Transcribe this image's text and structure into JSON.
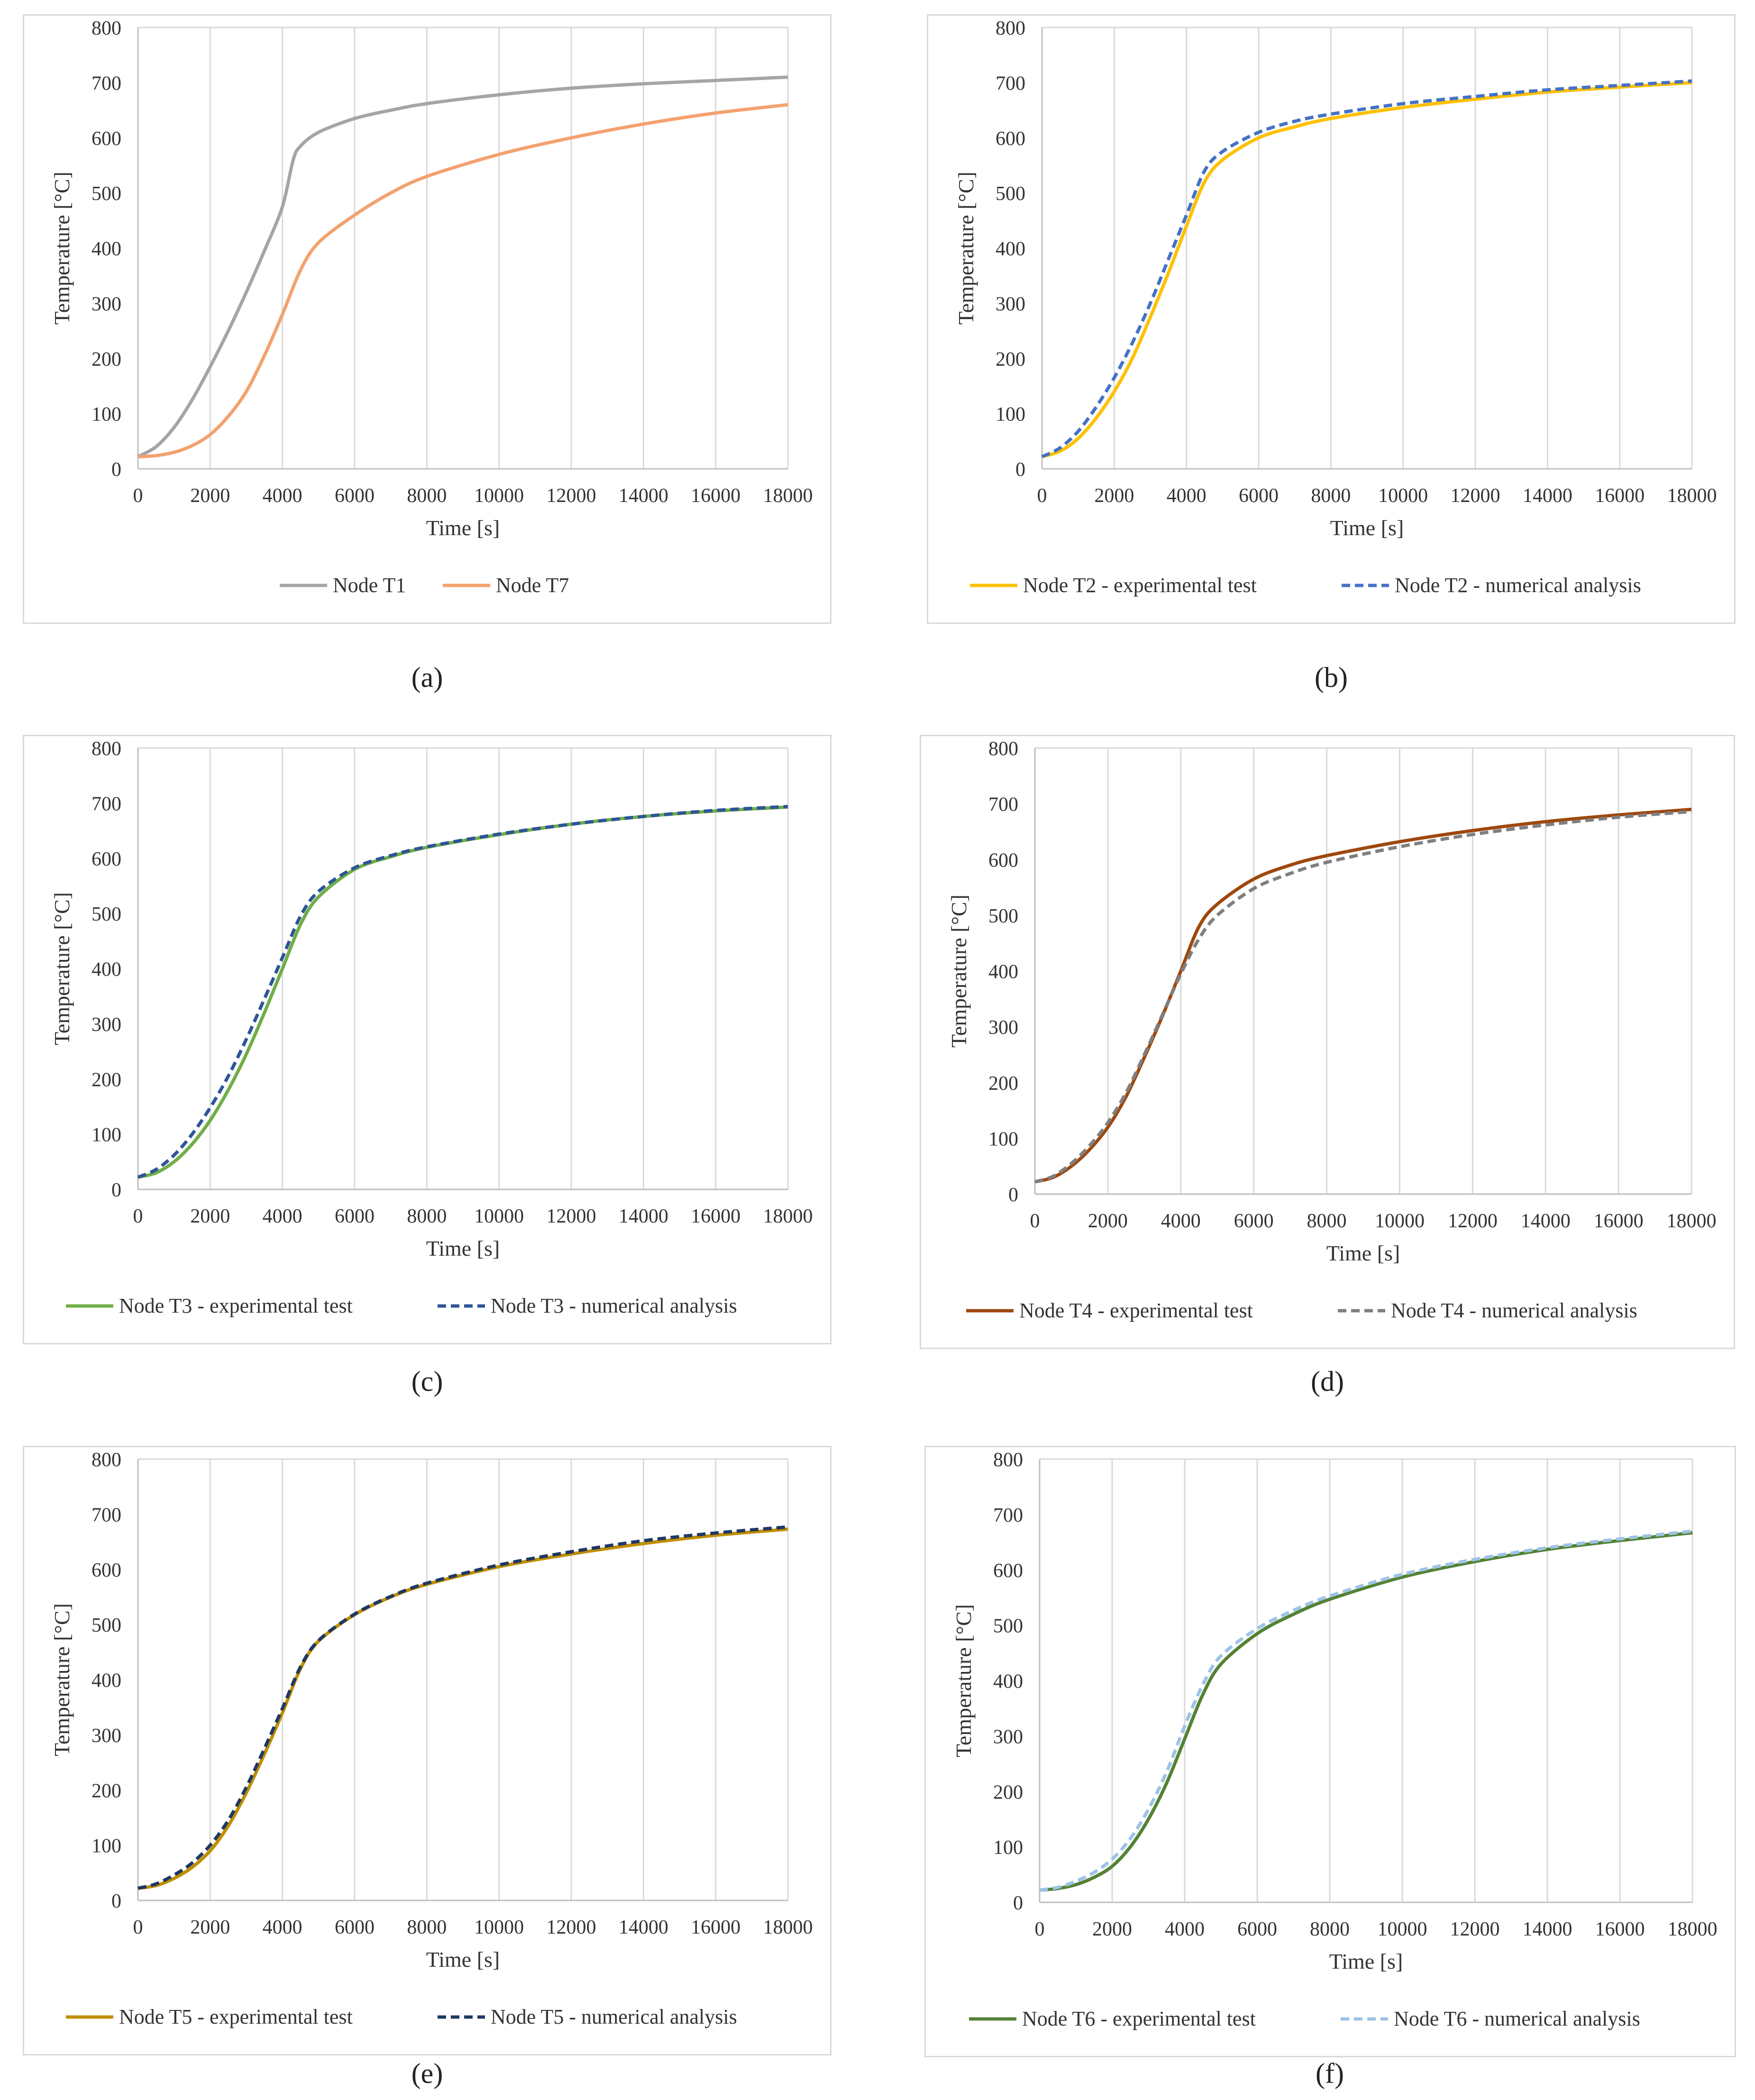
{
  "chart_data": [
    {
      "type": "line",
      "panel_label": "(a)",
      "xlabel": "Time [s]",
      "ylabel": "Temperature [°C]",
      "xlim": [
        0,
        18000
      ],
      "ylim": [
        0,
        800
      ],
      "x_ticks": [
        "0",
        "2000",
        "4000",
        "6000",
        "8000",
        "10000",
        "12000",
        "14000",
        "16000",
        "18000"
      ],
      "y_ticks": [
        "0",
        "100",
        "200",
        "300",
        "400",
        "500",
        "600",
        "700",
        "800"
      ],
      "grid": "vertical",
      "legend_position": "bottom",
      "series": [
        {
          "name": "Node T1",
          "color": "#a5a5a5",
          "dash": "solid",
          "x": [
            0,
            500,
            1000,
            1500,
            2000,
            2500,
            3000,
            3500,
            4000,
            4300,
            4500,
            5000,
            6000,
            7000,
            8000,
            10000,
            12000,
            14000,
            16000,
            18000
          ],
          "y": [
            22,
            40,
            75,
            125,
            185,
            250,
            320,
            395,
            475,
            560,
            585,
            610,
            635,
            650,
            662,
            678,
            690,
            698,
            704,
            710
          ]
        },
        {
          "name": "Node T7",
          "color": "#f4a16f",
          "dash": "solid",
          "x": [
            0,
            500,
            1000,
            1500,
            2000,
            2500,
            3000,
            3500,
            4000,
            4500,
            5000,
            6000,
            7000,
            8000,
            10000,
            12000,
            14000,
            16000,
            18000
          ],
          "y": [
            22,
            24,
            30,
            42,
            62,
            95,
            140,
            205,
            280,
            360,
            410,
            460,
            500,
            530,
            570,
            600,
            625,
            645,
            660
          ]
        }
      ]
    },
    {
      "type": "line",
      "panel_label": "(b)",
      "xlabel": "Time [s]",
      "ylabel": "Temperature [°C]",
      "xlim": [
        0,
        18000
      ],
      "ylim": [
        0,
        800
      ],
      "x_ticks": [
        "0",
        "2000",
        "4000",
        "6000",
        "8000",
        "10000",
        "12000",
        "14000",
        "16000",
        "18000"
      ],
      "y_ticks": [
        "0",
        "100",
        "200",
        "300",
        "400",
        "500",
        "600",
        "700",
        "800"
      ],
      "grid": "vertical",
      "legend_position": "bottom",
      "series": [
        {
          "name": "Node T2 - experimental test",
          "color": "#ffc000",
          "dash": "solid",
          "x": [
            0,
            500,
            1000,
            1500,
            2000,
            2500,
            3000,
            3500,
            4000,
            4500,
            5000,
            6000,
            7000,
            8000,
            10000,
            12000,
            14000,
            16000,
            18000
          ],
          "y": [
            22,
            32,
            55,
            92,
            140,
            200,
            275,
            355,
            440,
            520,
            560,
            600,
            620,
            635,
            655,
            670,
            683,
            692,
            700
          ]
        },
        {
          "name": "Node T2 - numerical analysis",
          "color": "#4472c4",
          "dash": "dashed",
          "x": [
            0,
            500,
            1000,
            1500,
            2000,
            2500,
            3000,
            3500,
            4000,
            4500,
            5000,
            6000,
            7000,
            8000,
            10000,
            12000,
            14000,
            16000,
            18000
          ],
          "y": [
            22,
            38,
            68,
            112,
            165,
            228,
            300,
            380,
            460,
            540,
            575,
            610,
            630,
            643,
            662,
            675,
            687,
            695,
            703
          ]
        }
      ]
    },
    {
      "type": "line",
      "panel_label": "(c)",
      "xlabel": "Time [s]",
      "ylabel": "Temperature [°C]",
      "xlim": [
        0,
        18000
      ],
      "ylim": [
        0,
        800
      ],
      "x_ticks": [
        "0",
        "2000",
        "4000",
        "6000",
        "8000",
        "10000",
        "12000",
        "14000",
        "16000",
        "18000"
      ],
      "y_ticks": [
        "0",
        "100",
        "200",
        "300",
        "400",
        "500",
        "600",
        "700",
        "800"
      ],
      "grid": "vertical",
      "legend_position": "bottom",
      "series": [
        {
          "name": "Node T3 - experimental test",
          "color": "#70ad47",
          "dash": "solid",
          "x": [
            0,
            500,
            1000,
            1500,
            2000,
            2500,
            3000,
            3500,
            4000,
            4500,
            5000,
            6000,
            7000,
            8000,
            10000,
            12000,
            14000,
            16000,
            18000
          ],
          "y": [
            22,
            30,
            50,
            82,
            125,
            180,
            245,
            320,
            400,
            480,
            530,
            580,
            603,
            620,
            643,
            662,
            676,
            686,
            693
          ]
        },
        {
          "name": "Node T3 - numerical analysis",
          "color": "#2e5597",
          "dash": "dashed",
          "x": [
            0,
            500,
            1000,
            1500,
            2000,
            2500,
            3000,
            3500,
            4000,
            4500,
            5000,
            6000,
            7000,
            8000,
            10000,
            12000,
            14000,
            16000,
            18000
          ],
          "y": [
            22,
            36,
            62,
            100,
            148,
            205,
            272,
            345,
            420,
            495,
            540,
            583,
            605,
            621,
            644,
            662,
            676,
            687,
            694
          ]
        }
      ]
    },
    {
      "type": "line",
      "panel_label": "(d)",
      "xlabel": "Time [s]",
      "ylabel": "Temperature [°C]",
      "xlim": [
        0,
        18000
      ],
      "ylim": [
        0,
        800
      ],
      "x_ticks": [
        "0",
        "2000",
        "4000",
        "6000",
        "8000",
        "10000",
        "12000",
        "14000",
        "16000",
        "18000"
      ],
      "y_ticks": [
        "0",
        "100",
        "200",
        "300",
        "400",
        "500",
        "600",
        "700",
        "800"
      ],
      "grid": "vertical",
      "legend_position": "bottom",
      "series": [
        {
          "name": "Node T4 - experimental test",
          "color": "#9e480e",
          "dash": "solid",
          "x": [
            0,
            500,
            1000,
            1500,
            2000,
            2500,
            3000,
            3500,
            4000,
            4500,
            5000,
            6000,
            7000,
            8000,
            10000,
            12000,
            14000,
            16000,
            18000
          ],
          "y": [
            22,
            30,
            50,
            80,
            120,
            175,
            245,
            320,
            400,
            480,
            520,
            565,
            590,
            607,
            632,
            652,
            668,
            680,
            690
          ]
        },
        {
          "name": "Node T4 - numerical analysis",
          "color": "#7f7f7f",
          "dash": "dashed",
          "x": [
            0,
            500,
            1000,
            1500,
            2000,
            2500,
            3000,
            3500,
            4000,
            4500,
            5000,
            6000,
            7000,
            8000,
            10000,
            12000,
            14000,
            16000,
            18000
          ],
          "y": [
            22,
            32,
            55,
            87,
            128,
            182,
            250,
            322,
            395,
            458,
            500,
            548,
            575,
            595,
            623,
            645,
            662,
            676,
            686
          ]
        }
      ]
    },
    {
      "type": "line",
      "panel_label": "(e)",
      "xlabel": "Time [s]",
      "ylabel": "Temperature [°C]",
      "xlim": [
        0,
        18000
      ],
      "ylim": [
        0,
        800
      ],
      "x_ticks": [
        "0",
        "2000",
        "4000",
        "6000",
        "8000",
        "10000",
        "12000",
        "14000",
        "16000",
        "18000"
      ],
      "y_ticks": [
        "0",
        "100",
        "200",
        "300",
        "400",
        "500",
        "600",
        "700",
        "800"
      ],
      "grid": "vertical",
      "legend_position": "bottom",
      "series": [
        {
          "name": "Node T5 - experimental test",
          "color": "#bf8f00",
          "dash": "solid",
          "x": [
            0,
            500,
            1000,
            1500,
            2000,
            2500,
            3000,
            3500,
            4000,
            4500,
            5000,
            6000,
            7000,
            8000,
            10000,
            12000,
            14000,
            16000,
            18000
          ],
          "y": [
            22,
            27,
            40,
            60,
            90,
            135,
            195,
            265,
            340,
            420,
            470,
            518,
            550,
            573,
            605,
            628,
            647,
            662,
            673
          ]
        },
        {
          "name": "Node T5 - numerical analysis",
          "color": "#1f3864",
          "dash": "dashed",
          "x": [
            0,
            500,
            1000,
            1500,
            2000,
            2500,
            3000,
            3500,
            4000,
            4500,
            5000,
            6000,
            7000,
            8000,
            10000,
            12000,
            14000,
            16000,
            18000
          ],
          "y": [
            22,
            30,
            46,
            68,
            100,
            145,
            205,
            275,
            348,
            423,
            471,
            519,
            551,
            575,
            608,
            632,
            652,
            666,
            677
          ]
        }
      ]
    },
    {
      "type": "line",
      "panel_label": "(f)",
      "xlabel": "Time [s]",
      "ylabel": "Temperature [°C]",
      "xlim": [
        0,
        18000
      ],
      "ylim": [
        0,
        800
      ],
      "x_ticks": [
        "0",
        "2000",
        "4000",
        "6000",
        "8000",
        "10000",
        "12000",
        "14000",
        "16000",
        "18000"
      ],
      "y_ticks": [
        "0",
        "100",
        "200",
        "300",
        "400",
        "500",
        "600",
        "700",
        "800"
      ],
      "grid": "vertical",
      "legend_position": "bottom",
      "series": [
        {
          "name": "Node T6 - experimental test",
          "color": "#548235",
          "dash": "solid",
          "x": [
            0,
            500,
            1000,
            1500,
            2000,
            2500,
            3000,
            3500,
            4000,
            4500,
            5000,
            6000,
            7000,
            8000,
            10000,
            12000,
            14000,
            16000,
            18000
          ],
          "y": [
            22,
            25,
            32,
            45,
            65,
            100,
            150,
            215,
            295,
            375,
            430,
            485,
            520,
            547,
            587,
            615,
            637,
            653,
            667
          ]
        },
        {
          "name": "Node T6 - numerical analysis",
          "color": "#9dc3e6",
          "dash": "dashed",
          "x": [
            0,
            500,
            1000,
            1500,
            2000,
            2500,
            3000,
            3500,
            4000,
            4500,
            5000,
            6000,
            7000,
            8000,
            10000,
            12000,
            14000,
            16000,
            18000
          ],
          "y": [
            22,
            27,
            38,
            54,
            78,
            115,
            168,
            235,
            318,
            393,
            445,
            494,
            527,
            553,
            592,
            619,
            640,
            656,
            670
          ]
        }
      ]
    }
  ]
}
